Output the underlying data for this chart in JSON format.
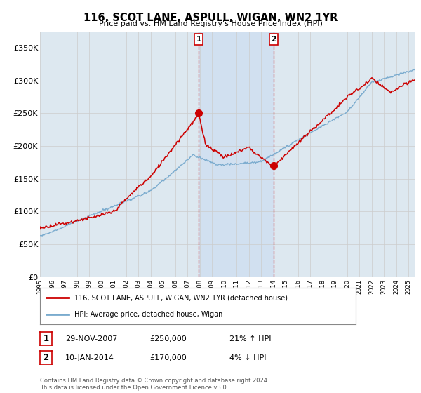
{
  "title": "116, SCOT LANE, ASPULL, WIGAN, WN2 1YR",
  "subtitle": "Price paid vs. HM Land Registry's House Price Index (HPI)",
  "ylabel_ticks": [
    "£0",
    "£50K",
    "£100K",
    "£150K",
    "£200K",
    "£250K",
    "£300K",
    "£350K"
  ],
  "ytick_values": [
    0,
    50000,
    100000,
    150000,
    200000,
    250000,
    300000,
    350000
  ],
  "ylim": [
    0,
    375000
  ],
  "sale1_x": 2007.91,
  "sale2_x": 2014.03,
  "sale1_price": 250000,
  "sale2_price": 170000,
  "legend_label_red": "116, SCOT LANE, ASPULL, WIGAN, WN2 1YR (detached house)",
  "legend_label_blue": "HPI: Average price, detached house, Wigan",
  "footer": "Contains HM Land Registry data © Crown copyright and database right 2024.\nThis data is licensed under the Open Government Licence v3.0.",
  "bg_color": "#ffffff",
  "plot_bg_color": "#dde8f0",
  "shade_color": "#ccddf0",
  "red_color": "#cc0000",
  "blue_color": "#7aabce",
  "grid_color": "#cccccc",
  "sale1_date": "29-NOV-2007",
  "sale2_date": "10-JAN-2014",
  "sale1_pct": "21%",
  "sale1_dir": "↑",
  "sale2_pct": "4%",
  "sale2_dir": "↓"
}
